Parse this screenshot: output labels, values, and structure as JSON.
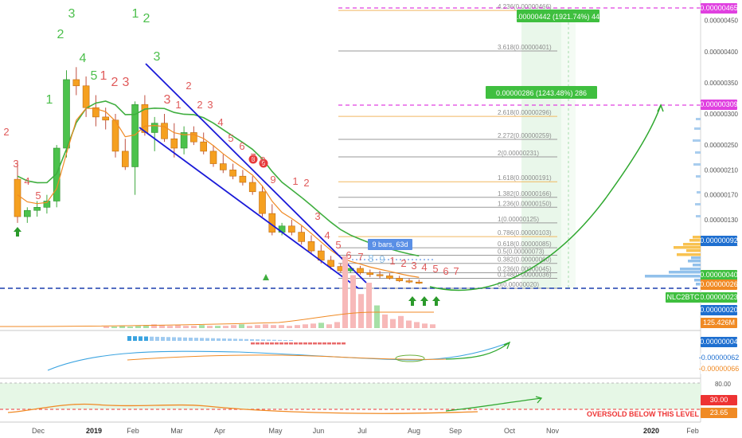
{
  "chart_data": {
    "type": "candlestick",
    "symbol_label": "NLC2BTC",
    "x_ticks": [
      "Dec",
      "2019",
      "Feb",
      "Mar",
      "Apr",
      "May",
      "Jun",
      "Jul",
      "Aug",
      "Sep",
      "Oct",
      "Nov",
      "2020",
      "Feb"
    ],
    "price_ticks": [
      "0.00000450",
      "0.00000400",
      "0.00000350",
      "0.00000300",
      "0.00000250",
      "0.00000210",
      "0.00000170",
      "0.00000130",
      "0.00000092"
    ],
    "price_axis_min": 2e-07,
    "price_axis_max": 4.7e-06,
    "candles": [
      {
        "o": 1.95,
        "h": 2.25,
        "l": 1.25,
        "c": 1.35
      },
      {
        "o": 1.35,
        "h": 1.5,
        "l": 1.25,
        "c": 1.45
      },
      {
        "o": 1.45,
        "h": 1.6,
        "l": 1.35,
        "c": 1.5
      },
      {
        "o": 1.5,
        "h": 1.7,
        "l": 1.4,
        "c": 1.6
      },
      {
        "o": 1.6,
        "h": 2.5,
        "l": 1.5,
        "c": 2.45
      },
      {
        "o": 2.45,
        "h": 3.7,
        "l": 2.3,
        "c": 3.55
      },
      {
        "o": 3.55,
        "h": 3.75,
        "l": 3.3,
        "c": 3.45
      },
      {
        "o": 3.45,
        "h": 3.6,
        "l": 2.95,
        "c": 3.1
      },
      {
        "o": 3.1,
        "h": 3.3,
        "l": 2.8,
        "c": 2.95
      },
      {
        "o": 2.95,
        "h": 3.1,
        "l": 2.75,
        "c": 2.9
      },
      {
        "o": 2.9,
        "h": 3.0,
        "l": 2.3,
        "c": 2.4
      },
      {
        "o": 2.4,
        "h": 2.6,
        "l": 2.1,
        "c": 2.15
      },
      {
        "o": 2.15,
        "h": 3.2,
        "l": 1.7,
        "c": 3.15
      },
      {
        "o": 3.15,
        "h": 3.3,
        "l": 2.65,
        "c": 2.7
      },
      {
        "o": 2.7,
        "h": 2.95,
        "l": 2.4,
        "c": 2.85
      },
      {
        "o": 2.85,
        "h": 3.0,
        "l": 2.55,
        "c": 2.6
      },
      {
        "o": 2.6,
        "h": 2.85,
        "l": 2.3,
        "c": 2.45
      },
      {
        "o": 2.45,
        "h": 2.8,
        "l": 2.35,
        "c": 2.7
      },
      {
        "o": 2.7,
        "h": 2.8,
        "l": 2.5,
        "c": 2.55
      },
      {
        "o": 2.55,
        "h": 2.7,
        "l": 2.35,
        "c": 2.4
      },
      {
        "o": 2.4,
        "h": 2.5,
        "l": 2.15,
        "c": 2.2
      },
      {
        "o": 2.2,
        "h": 2.35,
        "l": 2.05,
        "c": 2.1
      },
      {
        "o": 2.1,
        "h": 2.2,
        "l": 1.95,
        "c": 2.0
      },
      {
        "o": 2.0,
        "h": 2.1,
        "l": 1.85,
        "c": 1.9
      },
      {
        "o": 1.9,
        "h": 2.0,
        "l": 1.7,
        "c": 1.75
      },
      {
        "o": 1.75,
        "h": 1.85,
        "l": 1.35,
        "c": 1.4
      },
      {
        "o": 1.4,
        "h": 1.55,
        "l": 1.05,
        "c": 1.1
      },
      {
        "o": 1.1,
        "h": 1.25,
        "l": 1.05,
        "c": 1.2
      },
      {
        "o": 1.2,
        "h": 1.3,
        "l": 1.05,
        "c": 1.1
      },
      {
        "o": 1.1,
        "h": 1.2,
        "l": 0.9,
        "c": 0.95
      },
      {
        "o": 0.95,
        "h": 1.05,
        "l": 0.75,
        "c": 0.8
      },
      {
        "o": 0.8,
        "h": 0.9,
        "l": 0.6,
        "c": 0.65
      },
      {
        "o": 0.65,
        "h": 0.72,
        "l": 0.5,
        "c": 0.55
      },
      {
        "o": 0.55,
        "h": 0.6,
        "l": 0.45,
        "c": 0.48
      },
      {
        "o": 0.48,
        "h": 0.56,
        "l": 0.45,
        "c": 0.52
      },
      {
        "o": 0.52,
        "h": 0.56,
        "l": 0.42,
        "c": 0.45
      },
      {
        "o": 0.45,
        "h": 0.5,
        "l": 0.38,
        "c": 0.42
      },
      {
        "o": 0.42,
        "h": 0.48,
        "l": 0.36,
        "c": 0.4
      },
      {
        "o": 0.4,
        "h": 0.44,
        "l": 0.34,
        "c": 0.36
      },
      {
        "o": 0.36,
        "h": 0.4,
        "l": 0.3,
        "c": 0.32
      },
      {
        "o": 0.32,
        "h": 0.36,
        "l": 0.28,
        "c": 0.3
      },
      {
        "o": 0.3,
        "h": 0.34,
        "l": 0.27,
        "c": 0.29
      }
    ],
    "fib_levels": [
      {
        "label": "4.236(0.00000466)",
        "price": 4.66
      },
      {
        "label": "3.618(0.00000401)",
        "price": 4.01
      },
      {
        "label": "2.618(0.00000296)",
        "price": 2.96
      },
      {
        "label": "2.272(0.00000259)",
        "price": 2.59
      },
      {
        "label": "2(0.00000231)",
        "price": 2.31
      },
      {
        "label": "1.618(0.00000191)",
        "price": 1.91
      },
      {
        "label": "1.382(0.00000166)",
        "price": 1.66
      },
      {
        "label": "1.236(0.00000150)",
        "price": 1.5
      },
      {
        "label": "1(0.00000125)",
        "price": 1.25
      },
      {
        "label": "0.786(0.00000103)",
        "price": 1.03
      },
      {
        "label": "0.618(0.00000085)",
        "price": 0.85
      },
      {
        "label": "0.5(0.00000073)",
        "price": 0.73
      },
      {
        "label": "0.382(0.00000060)",
        "price": 0.6
      },
      {
        "label": "0.236(0.00000045)",
        "price": 0.45
      },
      {
        "label": "0.148(0.00000036)",
        "price": 0.36
      },
      {
        "label": "0(0.00000020)",
        "price": 0.2
      }
    ],
    "targets": [
      {
        "label": "0.00000442 (1921.74%) 442",
        "price_tag": "0.00000465"
      },
      {
        "label": "0.00000286 (1243.48%) 286",
        "price_tag": "0.00000309"
      }
    ],
    "bars_range_label": "9 bars, 63d",
    "price_tags": [
      {
        "text": "0.00000040",
        "kind": "green"
      },
      {
        "text": "0.00000026",
        "kind": "orange"
      },
      {
        "text": "0.00000023",
        "kind": "green"
      },
      {
        "text": "0.00000020",
        "kind": "blue"
      },
      {
        "text": "125.426M",
        "kind": "orange"
      }
    ],
    "macd": {
      "tags": [
        "0.00000004",
        "-0.00000062",
        "-0.00000066"
      ]
    },
    "rsi": {
      "ticks": [
        "80.00"
      ],
      "tags": [
        "30.00",
        "23.65"
      ],
      "note": "OVERSOLD BELOW THIS LEVEL"
    },
    "td_labels": [
      "2",
      "3",
      "4",
      "5",
      "1",
      "2",
      "3",
      "4",
      "5",
      "1",
      "2",
      "3",
      "1",
      "2",
      "3",
      "3",
      "2",
      "1",
      "2",
      "3",
      "4",
      "5",
      "6",
      "7",
      "8",
      "9",
      "1",
      "2",
      "3",
      "4",
      "5",
      "6",
      "7",
      "8",
      "9",
      "1",
      "2",
      "3",
      "4",
      "5",
      "6",
      "7"
    ]
  }
}
